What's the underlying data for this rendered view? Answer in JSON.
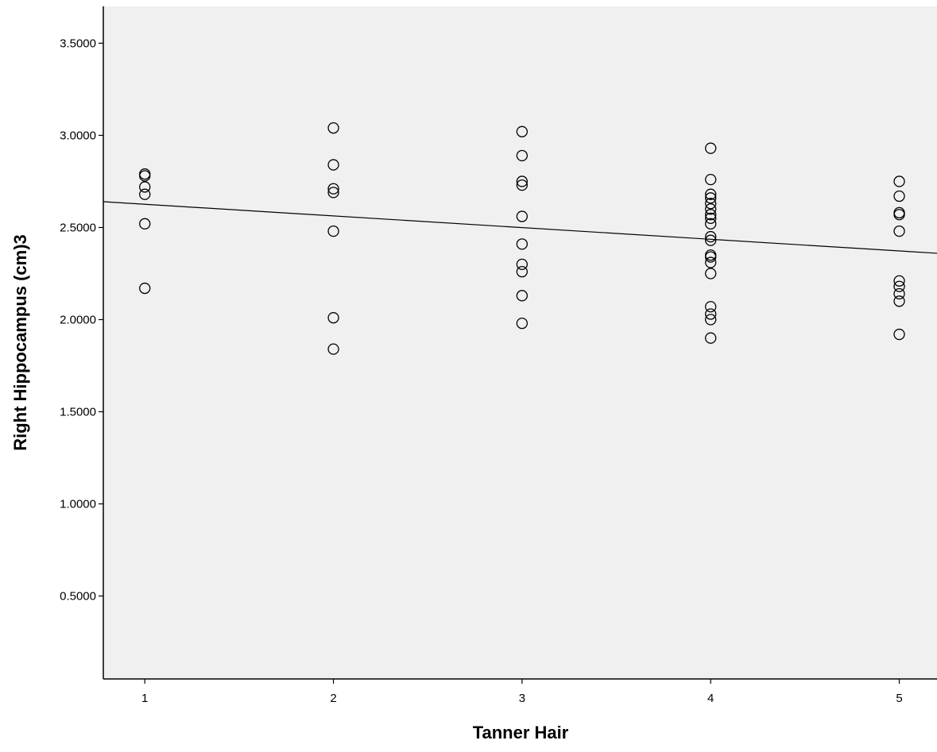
{
  "chart_data": {
    "type": "scatter",
    "title": "",
    "xlabel": "Tanner Hair",
    "ylabel": "Right Hippocampus (cm)3",
    "xlim": [
      0.78,
      5.2
    ],
    "ylim": [
      0.05,
      3.7
    ],
    "x_ticks": [
      "1",
      "2",
      "3",
      "4",
      "5"
    ],
    "y_ticks": [
      "0.5000",
      "1.0000",
      "1.5000",
      "2.0000",
      "2.5000",
      "3.0000",
      "3.5000"
    ],
    "grid": false,
    "legend": "none",
    "plot_background": "#f0f0f0",
    "marker_color": "#000000",
    "line_color": "#000000",
    "points": [
      {
        "x": 1,
        "y": 2.79
      },
      {
        "x": 1,
        "y": 2.78
      },
      {
        "x": 1,
        "y": 2.72
      },
      {
        "x": 1,
        "y": 2.68
      },
      {
        "x": 1,
        "y": 2.52
      },
      {
        "x": 1,
        "y": 2.17
      },
      {
        "x": 2,
        "y": 3.04
      },
      {
        "x": 2,
        "y": 2.84
      },
      {
        "x": 2,
        "y": 2.71
      },
      {
        "x": 2,
        "y": 2.69
      },
      {
        "x": 2,
        "y": 2.48
      },
      {
        "x": 2,
        "y": 2.01
      },
      {
        "x": 2,
        "y": 1.84
      },
      {
        "x": 3,
        "y": 3.02
      },
      {
        "x": 3,
        "y": 2.89
      },
      {
        "x": 3,
        "y": 2.75
      },
      {
        "x": 3,
        "y": 2.73
      },
      {
        "x": 3,
        "y": 2.56
      },
      {
        "x": 3,
        "y": 2.41
      },
      {
        "x": 3,
        "y": 2.3
      },
      {
        "x": 3,
        "y": 2.26
      },
      {
        "x": 3,
        "y": 2.13
      },
      {
        "x": 3,
        "y": 1.98
      },
      {
        "x": 4,
        "y": 2.93
      },
      {
        "x": 4,
        "y": 2.76
      },
      {
        "x": 4,
        "y": 2.68
      },
      {
        "x": 4,
        "y": 2.66
      },
      {
        "x": 4,
        "y": 2.63
      },
      {
        "x": 4,
        "y": 2.6
      },
      {
        "x": 4,
        "y": 2.57
      },
      {
        "x": 4,
        "y": 2.55
      },
      {
        "x": 4,
        "y": 2.52
      },
      {
        "x": 4,
        "y": 2.45
      },
      {
        "x": 4,
        "y": 2.43
      },
      {
        "x": 4,
        "y": 2.35
      },
      {
        "x": 4,
        "y": 2.34
      },
      {
        "x": 4,
        "y": 2.31
      },
      {
        "x": 4,
        "y": 2.25
      },
      {
        "x": 4,
        "y": 2.07
      },
      {
        "x": 4,
        "y": 2.03
      },
      {
        "x": 4,
        "y": 2.0
      },
      {
        "x": 4,
        "y": 1.9
      },
      {
        "x": 5,
        "y": 2.75
      },
      {
        "x": 5,
        "y": 2.67
      },
      {
        "x": 5,
        "y": 2.58
      },
      {
        "x": 5,
        "y": 2.57
      },
      {
        "x": 5,
        "y": 2.48
      },
      {
        "x": 5,
        "y": 2.21
      },
      {
        "x": 5,
        "y": 2.18
      },
      {
        "x": 5,
        "y": 2.14
      },
      {
        "x": 5,
        "y": 2.1
      },
      {
        "x": 5,
        "y": 1.92
      }
    ],
    "fit_line": {
      "x": [
        0.78,
        5.2
      ],
      "y": [
        2.64,
        2.36
      ]
    }
  }
}
